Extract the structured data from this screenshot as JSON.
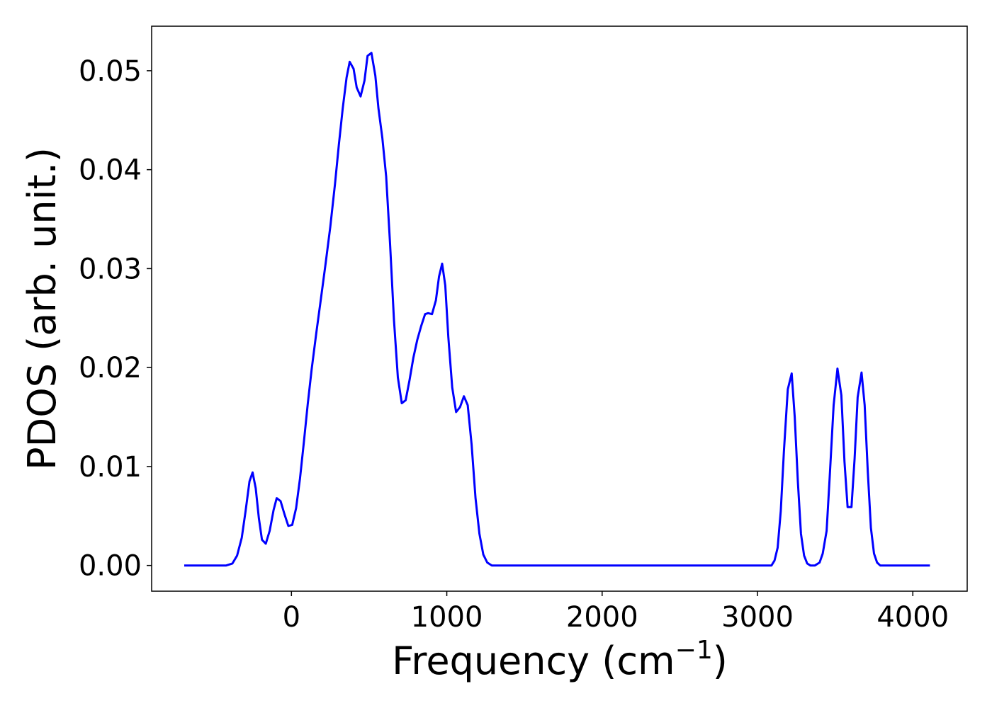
{
  "chart_data": {
    "type": "line",
    "xlabel": "Frequency (cm",
    "xlabel_superscript": "−1",
    "xlabel_suffix": ")",
    "ylabel": "PDOS (arb. unit.)",
    "xlim": [
      -900,
      4350
    ],
    "ylim": [
      -0.0026,
      0.0545
    ],
    "x_ticks": [
      0,
      1000,
      2000,
      3000,
      4000
    ],
    "x_tick_labels": [
      "0",
      "1000",
      "2000",
      "3000",
      "4000"
    ],
    "y_ticks": [
      0.0,
      0.01,
      0.02,
      0.03,
      0.04,
      0.05
    ],
    "y_tick_labels": [
      "0.00",
      "0.01",
      "0.02",
      "0.03",
      "0.04",
      "0.05"
    ],
    "grid": false,
    "series": [
      {
        "color": "#0000ff",
        "points": [
          [
            -690,
            0.0
          ],
          [
            -500,
            0.0
          ],
          [
            -420,
            0.0
          ],
          [
            -380,
            0.0002
          ],
          [
            -350,
            0.001
          ],
          [
            -320,
            0.0028
          ],
          [
            -295,
            0.0055
          ],
          [
            -270,
            0.0085
          ],
          [
            -250,
            0.0094
          ],
          [
            -230,
            0.0078
          ],
          [
            -210,
            0.0048
          ],
          [
            -190,
            0.0026
          ],
          [
            -165,
            0.0022
          ],
          [
            -140,
            0.0035
          ],
          [
            -115,
            0.0056
          ],
          [
            -95,
            0.0068
          ],
          [
            -70,
            0.0065
          ],
          [
            -45,
            0.0052
          ],
          [
            -20,
            0.004
          ],
          [
            5,
            0.0041
          ],
          [
            30,
            0.0058
          ],
          [
            55,
            0.0088
          ],
          [
            80,
            0.0125
          ],
          [
            105,
            0.0163
          ],
          [
            130,
            0.0198
          ],
          [
            160,
            0.0235
          ],
          [
            190,
            0.027
          ],
          [
            220,
            0.0305
          ],
          [
            250,
            0.0342
          ],
          [
            280,
            0.0385
          ],
          [
            305,
            0.0425
          ],
          [
            330,
            0.0462
          ],
          [
            355,
            0.0493
          ],
          [
            375,
            0.0509
          ],
          [
            400,
            0.0502
          ],
          [
            420,
            0.0483
          ],
          [
            445,
            0.0474
          ],
          [
            470,
            0.049
          ],
          [
            490,
            0.0515
          ],
          [
            515,
            0.0518
          ],
          [
            540,
            0.0495
          ],
          [
            560,
            0.0462
          ],
          [
            585,
            0.0432
          ],
          [
            610,
            0.0393
          ],
          [
            635,
            0.0325
          ],
          [
            660,
            0.0248
          ],
          [
            685,
            0.019
          ],
          [
            710,
            0.0164
          ],
          [
            735,
            0.0167
          ],
          [
            760,
            0.0187
          ],
          [
            785,
            0.021
          ],
          [
            810,
            0.0228
          ],
          [
            835,
            0.0242
          ],
          [
            860,
            0.0254
          ],
          [
            880,
            0.0255
          ],
          [
            905,
            0.0254
          ],
          [
            930,
            0.0268
          ],
          [
            950,
            0.0292
          ],
          [
            970,
            0.0305
          ],
          [
            990,
            0.0283
          ],
          [
            1010,
            0.0231
          ],
          [
            1035,
            0.018
          ],
          [
            1060,
            0.0155
          ],
          [
            1085,
            0.016
          ],
          [
            1110,
            0.0171
          ],
          [
            1135,
            0.0162
          ],
          [
            1160,
            0.0122
          ],
          [
            1185,
            0.0068
          ],
          [
            1210,
            0.0032
          ],
          [
            1235,
            0.0011
          ],
          [
            1260,
            0.0003
          ],
          [
            1290,
            0.0
          ],
          [
            1400,
            0.0
          ],
          [
            2000,
            0.0
          ],
          [
            2600,
            0.0
          ],
          [
            3050,
            0.0
          ],
          [
            3090,
            0.0
          ],
          [
            3110,
            0.0005
          ],
          [
            3130,
            0.0018
          ],
          [
            3150,
            0.0055
          ],
          [
            3170,
            0.0115
          ],
          [
            3195,
            0.0178
          ],
          [
            3220,
            0.0194
          ],
          [
            3240,
            0.015
          ],
          [
            3260,
            0.0085
          ],
          [
            3280,
            0.0032
          ],
          [
            3300,
            0.001
          ],
          [
            3320,
            0.0002
          ],
          [
            3340,
            0.0
          ],
          [
            3370,
            0.0
          ],
          [
            3400,
            0.0003
          ],
          [
            3420,
            0.0012
          ],
          [
            3445,
            0.0035
          ],
          [
            3465,
            0.009
          ],
          [
            3490,
            0.0162
          ],
          [
            3515,
            0.0199
          ],
          [
            3540,
            0.0172
          ],
          [
            3560,
            0.0105
          ],
          [
            3580,
            0.0059
          ],
          [
            3605,
            0.0059
          ],
          [
            3625,
            0.0108
          ],
          [
            3645,
            0.017
          ],
          [
            3670,
            0.0195
          ],
          [
            3690,
            0.0162
          ],
          [
            3710,
            0.0095
          ],
          [
            3730,
            0.0038
          ],
          [
            3750,
            0.0012
          ],
          [
            3770,
            0.0003
          ],
          [
            3790,
            0.0
          ],
          [
            3850,
            0.0
          ],
          [
            4000,
            0.0
          ],
          [
            4110,
            0.0
          ]
        ]
      }
    ]
  }
}
